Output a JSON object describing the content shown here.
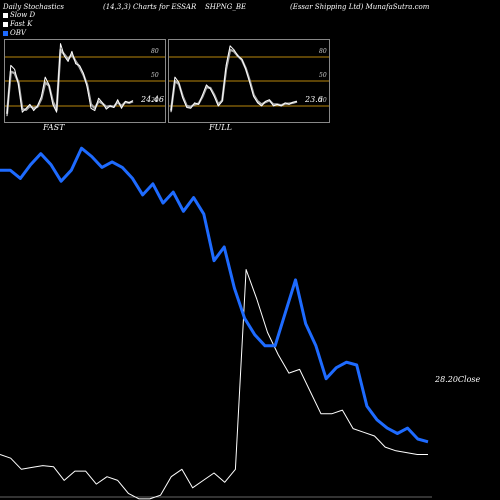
{
  "header": {
    "title_left": "Daily Stochastics",
    "title_params": "(14,3,3) Charts for ESSAR",
    "title_symbol": "SHPNG_BE",
    "title_right": "(Essar Shipping Ltd) MunafaSutra.com"
  },
  "legend": [
    {
      "label": "Slow D",
      "color": "#ffffff"
    },
    {
      "label": "Fast K",
      "color": "#ffffff"
    },
    {
      "label": "OBV",
      "color": "#1e6bff"
    }
  ],
  "colors": {
    "obv": "#1e6bff",
    "close": "#ffffff",
    "band": "#b8860b",
    "panel_border": "#888888"
  },
  "panels": {
    "fast": {
      "label": "FAST",
      "last_value": "24.46",
      "levels": [
        "80",
        "50",
        "20"
      ]
    },
    "full": {
      "label": "FULL",
      "last_value": "23.6",
      "levels": [
        "80",
        "50",
        "20"
      ]
    }
  },
  "main": {
    "close_label": "28.20Close"
  },
  "chart_data": [
    {
      "type": "line",
      "title": "FAST",
      "ylim": [
        0,
        100
      ],
      "reference_lines": [
        20,
        50,
        80
      ],
      "series": [
        {
          "name": "Fast K",
          "values": [
            5,
            70,
            65,
            45,
            10,
            15,
            20,
            12,
            18,
            30,
            55,
            45,
            20,
            10,
            98,
            82,
            75,
            88,
            72,
            70,
            60,
            42,
            15,
            12,
            28,
            22,
            14,
            18,
            16,
            26,
            15,
            24,
            22,
            25
          ]
        },
        {
          "name": "Slow D",
          "values": [
            8,
            62,
            60,
            48,
            14,
            13,
            18,
            15,
            17,
            27,
            48,
            44,
            24,
            13,
            90,
            84,
            78,
            84,
            75,
            68,
            58,
            45,
            20,
            15,
            24,
            21,
            17,
            18,
            17,
            23,
            18,
            23,
            22,
            24
          ]
        }
      ]
    },
    {
      "type": "line",
      "title": "FULL",
      "ylim": [
        0,
        100
      ],
      "reference_lines": [
        20,
        50,
        80
      ],
      "series": [
        {
          "name": "Fast K",
          "values": [
            10,
            55,
            48,
            28,
            16,
            15,
            22,
            20,
            32,
            45,
            40,
            30,
            18,
            24,
            70,
            95,
            90,
            82,
            78,
            65,
            48,
            30,
            22,
            18,
            24,
            26,
            18,
            20,
            18,
            22,
            20,
            23,
            23.6
          ]
        },
        {
          "name": "Slow D",
          "values": [
            12,
            50,
            46,
            30,
            18,
            17,
            20,
            21,
            30,
            42,
            41,
            32,
            20,
            25,
            65,
            90,
            88,
            82,
            77,
            66,
            50,
            32,
            24,
            20,
            23,
            25,
            20,
            20,
            19,
            21,
            21,
            22,
            23.6
          ]
        }
      ]
    },
    {
      "type": "line",
      "series": [
        {
          "name": "OBV",
          "values": [
            100,
            100,
            97,
            102,
            106,
            102,
            96,
            100,
            108,
            105,
            101,
            103,
            101,
            97,
            91,
            95,
            88,
            92,
            85,
            90,
            84,
            67,
            72,
            57,
            46,
            40,
            36,
            36,
            48,
            60,
            44,
            36,
            24,
            28,
            30,
            29,
            14,
            9,
            6,
            4,
            6,
            2,
            1
          ]
        },
        {
          "name": "Close",
          "values": [
            15,
            14,
            11,
            11.5,
            12,
            11.7,
            8,
            10.5,
            10.5,
            7,
            9,
            8,
            4.5,
            3,
            3,
            4,
            9,
            11,
            6,
            8,
            10,
            7.5,
            11,
            65,
            57,
            48,
            42,
            37,
            38,
            32,
            26,
            26,
            27,
            22,
            21,
            20,
            17,
            16,
            15.5,
            15,
            15
          ]
        }
      ]
    }
  ]
}
